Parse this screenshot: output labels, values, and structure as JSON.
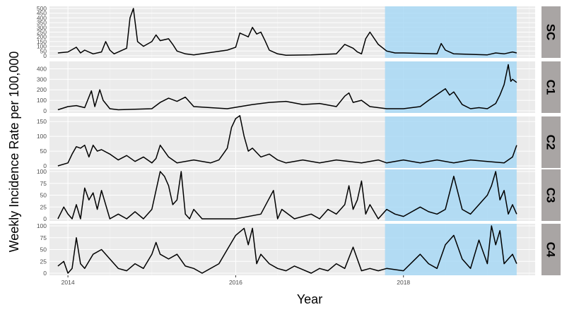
{
  "chart_data": {
    "type": "line",
    "xlabel": "Year",
    "ylabel": "Weekly Incidence Rate per 100,000",
    "x_ticks": [
      "2014",
      "2016",
      "2018"
    ],
    "x_range": [
      2013.78,
      2019.57
    ],
    "grid": true,
    "highlight_region": {
      "from": 2017.78,
      "to": 2019.35,
      "color": "#a8d8f5"
    },
    "colors": {
      "panel_bg": "#ebebeb",
      "grid_major": "#ffffff",
      "strip_bg": "#a9a5a4",
      "line": "#000000"
    },
    "panels": [
      {
        "label": "SC",
        "ylim": [
          0,
          500
        ],
        "y_ticks": [
          0,
          50,
          100,
          150,
          200,
          250,
          300,
          350,
          400,
          450,
          500
        ],
        "x": [
          2013.88,
          2014.0,
          2014.1,
          2014.15,
          2014.2,
          2014.3,
          2014.4,
          2014.45,
          2014.5,
          2014.55,
          2014.7,
          2014.74,
          2014.78,
          2014.83,
          2014.9,
          2015.0,
          2015.05,
          2015.1,
          2015.2,
          2015.25,
          2015.3,
          2015.4,
          2015.5,
          2015.9,
          2016.0,
          2016.05,
          2016.1,
          2016.15,
          2016.2,
          2016.25,
          2016.3,
          2016.35,
          2016.4,
          2016.5,
          2016.6,
          2016.9,
          2017.2,
          2017.3,
          2017.4,
          2017.45,
          2017.5,
          2017.55,
          2017.6,
          2017.7,
          2017.8,
          2017.9,
          2018.0,
          2018.4,
          2018.45,
          2018.5,
          2018.6,
          2019.0,
          2019.1,
          2019.2,
          2019.3,
          2019.35
        ],
        "values": [
          30,
          40,
          90,
          30,
          60,
          20,
          40,
          150,
          60,
          20,
          80,
          400,
          500,
          150,
          100,
          150,
          220,
          160,
          180,
          120,
          50,
          20,
          10,
          60,
          90,
          240,
          220,
          200,
          300,
          230,
          250,
          160,
          60,
          20,
          5,
          10,
          20,
          120,
          80,
          40,
          20,
          180,
          250,
          120,
          50,
          30,
          30,
          20,
          130,
          60,
          20,
          10,
          30,
          20,
          40,
          30
        ]
      },
      {
        "label": "C1",
        "ylim": [
          0,
          450
        ],
        "y_ticks": [
          0,
          100,
          200,
          300,
          400
        ],
        "x": [
          2013.88,
          2014.0,
          2014.1,
          2014.2,
          2014.28,
          2014.32,
          2014.38,
          2014.42,
          2014.5,
          2014.6,
          2015.0,
          2015.1,
          2015.2,
          2015.3,
          2015.4,
          2015.5,
          2015.9,
          2016.2,
          2016.4,
          2016.6,
          2016.8,
          2017.0,
          2017.2,
          2017.3,
          2017.35,
          2017.4,
          2017.5,
          2017.6,
          2017.7,
          2017.8,
          2018.0,
          2018.2,
          2018.3,
          2018.5,
          2018.55,
          2018.6,
          2018.7,
          2018.8,
          2018.9,
          2019.0,
          2019.1,
          2019.15,
          2019.2,
          2019.25,
          2019.28,
          2019.3,
          2019.35
        ],
        "values": [
          10,
          40,
          50,
          30,
          190,
          40,
          200,
          100,
          20,
          10,
          20,
          80,
          120,
          90,
          130,
          40,
          20,
          60,
          80,
          90,
          60,
          70,
          40,
          140,
          170,
          80,
          100,
          40,
          30,
          20,
          20,
          40,
          100,
          210,
          150,
          180,
          60,
          20,
          30,
          20,
          70,
          150,
          250,
          440,
          280,
          300,
          270
        ]
      },
      {
        "label": "C2",
        "ylim": [
          0,
          160
        ],
        "y_ticks": [
          0,
          50,
          100,
          150
        ],
        "x": [
          2013.88,
          2014.0,
          2014.05,
          2014.1,
          2014.15,
          2014.2,
          2014.25,
          2014.3,
          2014.35,
          2014.4,
          2014.5,
          2014.6,
          2014.7,
          2014.8,
          2014.9,
          2015.0,
          2015.05,
          2015.1,
          2015.2,
          2015.3,
          2015.5,
          2015.7,
          2015.8,
          2015.85,
          2015.9,
          2015.95,
          2016.0,
          2016.05,
          2016.1,
          2016.15,
          2016.2,
          2016.3,
          2016.4,
          2016.5,
          2016.6,
          2016.8,
          2017.0,
          2017.2,
          2017.5,
          2017.7,
          2017.8,
          2018.0,
          2018.2,
          2018.4,
          2018.6,
          2018.8,
          2019.0,
          2019.2,
          2019.3,
          2019.35
        ],
        "values": [
          0,
          10,
          40,
          65,
          60,
          70,
          30,
          70,
          50,
          55,
          40,
          20,
          35,
          15,
          30,
          10,
          25,
          70,
          30,
          10,
          20,
          10,
          20,
          40,
          60,
          130,
          160,
          170,
          100,
          50,
          60,
          30,
          40,
          20,
          10,
          20,
          10,
          20,
          10,
          20,
          10,
          20,
          10,
          20,
          10,
          20,
          15,
          10,
          30,
          70
        ]
      },
      {
        "label": "C3",
        "ylim": [
          0,
          100
        ],
        "y_ticks": [
          0,
          25,
          50,
          75,
          100
        ],
        "x": [
          2013.88,
          2013.95,
          2014.0,
          2014.05,
          2014.1,
          2014.15,
          2014.2,
          2014.25,
          2014.3,
          2014.35,
          2014.4,
          2014.5,
          2014.6,
          2014.7,
          2014.8,
          2014.9,
          2015.0,
          2015.05,
          2015.1,
          2015.15,
          2015.2,
          2015.25,
          2015.3,
          2015.35,
          2015.4,
          2015.45,
          2015.5,
          2015.6,
          2016.0,
          2016.3,
          2016.45,
          2016.5,
          2016.55,
          2016.7,
          2016.9,
          2017.0,
          2017.1,
          2017.2,
          2017.3,
          2017.35,
          2017.4,
          2017.45,
          2017.5,
          2017.55,
          2017.6,
          2017.7,
          2017.8,
          2017.9,
          2018.0,
          2018.2,
          2018.3,
          2018.4,
          2018.5,
          2018.6,
          2018.7,
          2018.8,
          2018.9,
          2019.0,
          2019.05,
          2019.1,
          2019.15,
          2019.2,
          2019.25,
          2019.3,
          2019.35
        ],
        "values": [
          0,
          25,
          10,
          0,
          30,
          0,
          65,
          40,
          55,
          20,
          60,
          0,
          10,
          0,
          15,
          0,
          20,
          60,
          100,
          90,
          70,
          30,
          40,
          100,
          10,
          0,
          20,
          0,
          0,
          10,
          60,
          0,
          20,
          0,
          10,
          0,
          20,
          10,
          30,
          70,
          20,
          40,
          80,
          10,
          30,
          0,
          20,
          10,
          5,
          25,
          15,
          10,
          20,
          90,
          20,
          10,
          30,
          50,
          70,
          100,
          40,
          60,
          10,
          30,
          10
        ]
      },
      {
        "label": "C4",
        "ylim": [
          0,
          100
        ],
        "y_ticks": [
          0,
          25,
          50,
          75,
          100
        ],
        "x": [
          2013.88,
          2013.95,
          2014.0,
          2014.05,
          2014.1,
          2014.15,
          2014.2,
          2014.3,
          2014.4,
          2014.5,
          2014.6,
          2014.7,
          2014.8,
          2014.9,
          2015.0,
          2015.05,
          2015.1,
          2015.2,
          2015.3,
          2015.4,
          2015.5,
          2015.6,
          2015.8,
          2015.9,
          2016.0,
          2016.1,
          2016.15,
          2016.2,
          2016.25,
          2016.3,
          2016.4,
          2016.5,
          2016.6,
          2016.7,
          2016.9,
          2017.0,
          2017.1,
          2017.2,
          2017.3,
          2017.4,
          2017.5,
          2017.6,
          2017.7,
          2017.8,
          2018.0,
          2018.2,
          2018.3,
          2018.4,
          2018.5,
          2018.6,
          2018.7,
          2018.8,
          2018.9,
          2019.0,
          2019.05,
          2019.1,
          2019.15,
          2019.2,
          2019.25,
          2019.3,
          2019.35
        ],
        "values": [
          15,
          25,
          0,
          10,
          75,
          20,
          10,
          40,
          50,
          30,
          10,
          5,
          20,
          10,
          40,
          65,
          40,
          30,
          40,
          15,
          10,
          0,
          20,
          50,
          80,
          95,
          60,
          95,
          20,
          40,
          20,
          10,
          5,
          15,
          0,
          10,
          5,
          20,
          10,
          55,
          5,
          10,
          5,
          10,
          5,
          40,
          20,
          10,
          60,
          80,
          30,
          10,
          70,
          20,
          100,
          60,
          90,
          20,
          30,
          40,
          20
        ]
      }
    ]
  }
}
